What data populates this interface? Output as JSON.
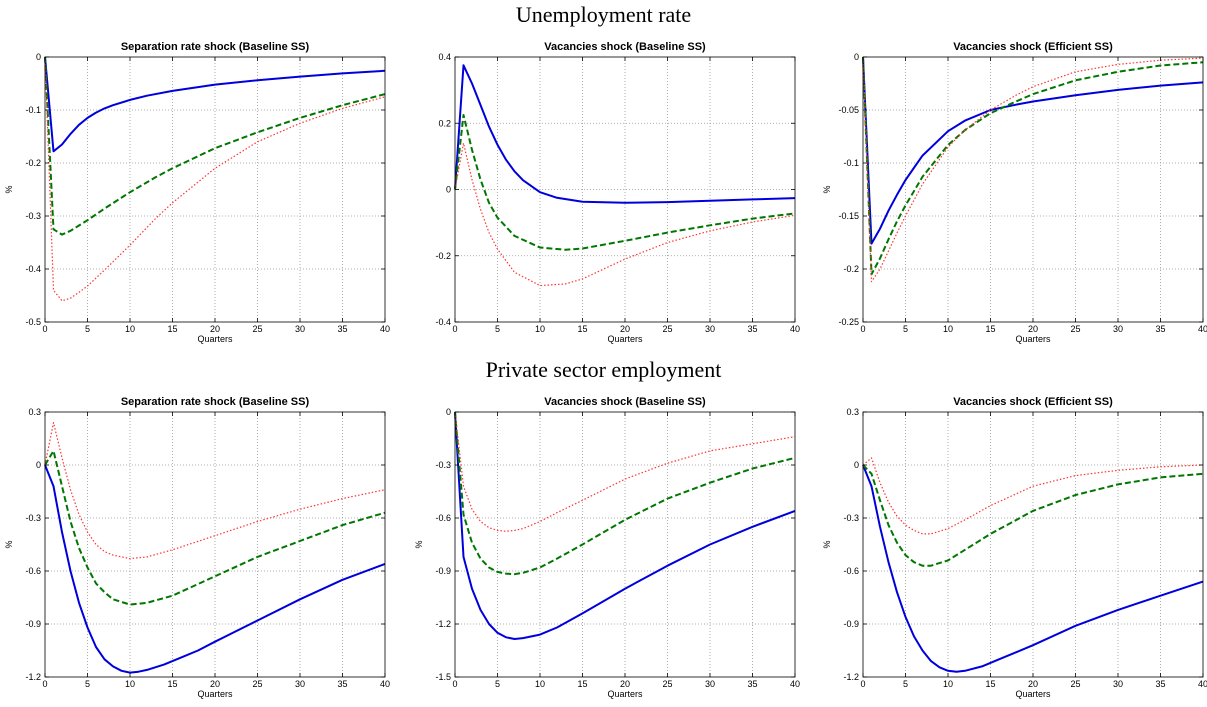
{
  "rows": [
    {
      "title": "Unemployment rate"
    },
    {
      "title": "Private sector employment"
    }
  ],
  "colors": {
    "solid": "#0000dd",
    "dashed": "#007700",
    "dotted": "#ff3333",
    "axis": "#000000",
    "grid": "#999999"
  },
  "chart_data": [
    {
      "type": "line",
      "title": "Separation rate shock (Baseline SS)",
      "xlabel": "Quarters",
      "ylabel": "%",
      "xlim": [
        0,
        40
      ],
      "ylim": [
        -0.5,
        0
      ],
      "xticks": [
        0,
        5,
        10,
        15,
        20,
        25,
        30,
        35,
        40
      ],
      "yticks": [
        -0.5,
        -0.4,
        -0.3,
        -0.2,
        -0.1,
        0
      ],
      "ytick_labels": [
        "-0.5",
        "-0.4",
        "-0.3",
        "-0.2",
        "-0.1",
        "0"
      ],
      "grid": true,
      "series": [
        {
          "style": "solid",
          "x": [
            0,
            1,
            2,
            3,
            4,
            5,
            6,
            7,
            8,
            10,
            12,
            15,
            20,
            25,
            30,
            35,
            40
          ],
          "y": [
            0,
            -0.178,
            -0.165,
            -0.145,
            -0.128,
            -0.115,
            -0.105,
            -0.097,
            -0.091,
            -0.081,
            -0.073,
            -0.064,
            -0.052,
            -0.044,
            -0.037,
            -0.031,
            -0.026
          ]
        },
        {
          "style": "dashed",
          "x": [
            0,
            1,
            2,
            3,
            4,
            5,
            7,
            10,
            13,
            15,
            20,
            25,
            30,
            35,
            40
          ],
          "y": [
            0,
            -0.325,
            -0.335,
            -0.328,
            -0.318,
            -0.308,
            -0.286,
            -0.255,
            -0.227,
            -0.21,
            -0.172,
            -0.142,
            -0.115,
            -0.091,
            -0.07
          ]
        },
        {
          "style": "dotted",
          "x": [
            0,
            1,
            2,
            3,
            4,
            5,
            7,
            10,
            13,
            15,
            20,
            25,
            30,
            35,
            40
          ],
          "y": [
            0,
            -0.44,
            -0.46,
            -0.455,
            -0.444,
            -0.432,
            -0.402,
            -0.355,
            -0.305,
            -0.275,
            -0.21,
            -0.16,
            -0.125,
            -0.097,
            -0.075
          ]
        }
      ]
    },
    {
      "type": "line",
      "title": "Vacancies shock (Baseline SS)",
      "xlabel": "Quarters",
      "ylabel": "",
      "xlim": [
        0,
        40
      ],
      "ylim": [
        -0.4,
        0.4
      ],
      "xticks": [
        0,
        5,
        10,
        15,
        20,
        25,
        30,
        35,
        40
      ],
      "yticks": [
        -0.4,
        -0.2,
        0,
        0.2,
        0.4
      ],
      "ytick_labels": [
        "-0.4",
        "-0.2",
        "0",
        "0.2",
        "0.4"
      ],
      "grid": true,
      "series": [
        {
          "style": "solid",
          "x": [
            0,
            1,
            2,
            3,
            4,
            5,
            6,
            7,
            8,
            10,
            12,
            15,
            20,
            25,
            30,
            35,
            40
          ],
          "y": [
            0,
            0.375,
            0.32,
            0.255,
            0.19,
            0.135,
            0.09,
            0.055,
            0.028,
            -0.008,
            -0.025,
            -0.037,
            -0.04,
            -0.038,
            -0.034,
            -0.03,
            -0.026
          ]
        },
        {
          "style": "dashed",
          "x": [
            0,
            1,
            2,
            3,
            4,
            5,
            7,
            10,
            13,
            15,
            20,
            25,
            30,
            35,
            40
          ],
          "y": [
            0,
            0.225,
            0.12,
            0.03,
            -0.04,
            -0.085,
            -0.14,
            -0.175,
            -0.182,
            -0.178,
            -0.155,
            -0.13,
            -0.108,
            -0.088,
            -0.072
          ]
        },
        {
          "style": "dotted",
          "x": [
            0,
            1,
            2,
            3,
            4,
            5,
            7,
            10,
            13,
            15,
            20,
            25,
            30,
            35,
            40
          ],
          "y": [
            0,
            0.14,
            0.03,
            -0.06,
            -0.13,
            -0.18,
            -0.25,
            -0.29,
            -0.285,
            -0.27,
            -0.21,
            -0.16,
            -0.125,
            -0.098,
            -0.078
          ]
        }
      ]
    },
    {
      "type": "line",
      "title": "Vacancies shock (Efficient SS)",
      "xlabel": "Quarters",
      "ylabel": "%",
      "xlim": [
        0,
        40
      ],
      "ylim": [
        -0.25,
        0
      ],
      "xticks": [
        0,
        5,
        10,
        15,
        20,
        25,
        30,
        35,
        40
      ],
      "yticks": [
        -0.25,
        -0.2,
        -0.15,
        -0.1,
        -0.05,
        0
      ],
      "ytick_labels": [
        "-0.25",
        "-0.2",
        "-0.15",
        "-0.1",
        "-0.05",
        "0"
      ],
      "grid": true,
      "series": [
        {
          "style": "solid",
          "x": [
            0,
            1,
            2,
            3,
            4,
            5,
            7,
            10,
            12,
            15,
            18,
            20,
            25,
            30,
            35,
            40
          ],
          "y": [
            0,
            -0.176,
            -0.162,
            -0.145,
            -0.13,
            -0.116,
            -0.093,
            -0.07,
            -0.06,
            -0.05,
            -0.045,
            -0.042,
            -0.036,
            -0.031,
            -0.027,
            -0.024
          ]
        },
        {
          "style": "dashed",
          "x": [
            0,
            1,
            2,
            3,
            4,
            5,
            7,
            10,
            12,
            15,
            18,
            20,
            25,
            30,
            35,
            40
          ],
          "y": [
            0,
            -0.205,
            -0.19,
            -0.172,
            -0.155,
            -0.14,
            -0.113,
            -0.083,
            -0.069,
            -0.053,
            -0.042,
            -0.035,
            -0.022,
            -0.014,
            -0.008,
            -0.005
          ]
        },
        {
          "style": "dotted",
          "x": [
            0,
            1,
            2,
            3,
            4,
            5,
            7,
            10,
            12,
            15,
            18,
            20,
            25,
            30,
            35,
            40
          ],
          "y": [
            0,
            -0.212,
            -0.2,
            -0.183,
            -0.166,
            -0.15,
            -0.12,
            -0.085,
            -0.069,
            -0.05,
            -0.036,
            -0.028,
            -0.014,
            -0.007,
            -0.003,
            -0.001
          ]
        }
      ]
    },
    {
      "type": "line",
      "title": "Separation rate shock (Baseline SS)",
      "xlabel": "Quarters",
      "ylabel": "%",
      "xlim": [
        0,
        40
      ],
      "ylim": [
        -1.2,
        0.3
      ],
      "xticks": [
        0,
        5,
        10,
        15,
        20,
        25,
        30,
        35,
        40
      ],
      "yticks": [
        -1.2,
        -0.9,
        -0.6,
        -0.3,
        0,
        0.3
      ],
      "ytick_labels": [
        "-1.2",
        "-0.9",
        "-0.6",
        "-0.3",
        "0",
        "0.3"
      ],
      "grid": true,
      "series": [
        {
          "style": "solid",
          "x": [
            0,
            1,
            2,
            3,
            4,
            5,
            6,
            7,
            8,
            9,
            10,
            11,
            12,
            14,
            16,
            18,
            20,
            25,
            30,
            35,
            40
          ],
          "y": [
            0,
            -0.12,
            -0.38,
            -0.6,
            -0.78,
            -0.92,
            -1.03,
            -1.1,
            -1.14,
            -1.165,
            -1.175,
            -1.17,
            -1.16,
            -1.13,
            -1.09,
            -1.05,
            -1.0,
            -0.88,
            -0.76,
            -0.65,
            -0.56
          ]
        },
        {
          "style": "dashed",
          "x": [
            0,
            1,
            2,
            3,
            4,
            5,
            6,
            7,
            8,
            10,
            12,
            15,
            20,
            25,
            30,
            35,
            40
          ],
          "y": [
            0,
            0.08,
            -0.12,
            -0.32,
            -0.47,
            -0.58,
            -0.67,
            -0.72,
            -0.76,
            -0.79,
            -0.78,
            -0.74,
            -0.63,
            -0.52,
            -0.43,
            -0.34,
            -0.27
          ]
        },
        {
          "style": "dotted",
          "x": [
            0,
            1,
            2,
            3,
            4,
            5,
            6,
            7,
            8,
            10,
            12,
            15,
            20,
            25,
            30,
            35,
            40
          ],
          "y": [
            0,
            0.24,
            0.04,
            -0.14,
            -0.28,
            -0.38,
            -0.45,
            -0.49,
            -0.51,
            -0.53,
            -0.52,
            -0.48,
            -0.4,
            -0.32,
            -0.25,
            -0.19,
            -0.14
          ]
        }
      ]
    },
    {
      "type": "line",
      "title": "Vacancies shock (Baseline SS)",
      "xlabel": "Quarters",
      "ylabel": "%",
      "xlim": [
        0,
        40
      ],
      "ylim": [
        -1.5,
        0
      ],
      "xticks": [
        0,
        5,
        10,
        15,
        20,
        25,
        30,
        35,
        40
      ],
      "yticks": [
        -1.5,
        -1.2,
        -0.9,
        -0.6,
        -0.3,
        0
      ],
      "ytick_labels": [
        "-1.5",
        "-1.2",
        "-0.9",
        "-0.6",
        "-0.3",
        "0"
      ],
      "grid": true,
      "series": [
        {
          "style": "solid",
          "x": [
            0,
            1,
            2,
            3,
            4,
            5,
            6,
            7,
            8,
            10,
            12,
            15,
            20,
            25,
            30,
            35,
            40
          ],
          "y": [
            0,
            -0.82,
            -1.0,
            -1.12,
            -1.2,
            -1.25,
            -1.275,
            -1.285,
            -1.28,
            -1.26,
            -1.22,
            -1.14,
            -1.0,
            -0.87,
            -0.75,
            -0.65,
            -0.56
          ]
        },
        {
          "style": "dashed",
          "x": [
            0,
            1,
            2,
            3,
            4,
            5,
            6,
            7,
            8,
            10,
            12,
            15,
            20,
            25,
            30,
            35,
            40
          ],
          "y": [
            0,
            -0.58,
            -0.74,
            -0.83,
            -0.88,
            -0.905,
            -0.915,
            -0.918,
            -0.91,
            -0.88,
            -0.83,
            -0.75,
            -0.61,
            -0.49,
            -0.4,
            -0.32,
            -0.26
          ]
        },
        {
          "style": "dotted",
          "x": [
            0,
            1,
            2,
            3,
            4,
            5,
            6,
            7,
            8,
            10,
            12,
            15,
            20,
            25,
            30,
            35,
            40
          ],
          "y": [
            0,
            -0.42,
            -0.55,
            -0.62,
            -0.655,
            -0.67,
            -0.675,
            -0.67,
            -0.66,
            -0.62,
            -0.57,
            -0.5,
            -0.38,
            -0.29,
            -0.22,
            -0.18,
            -0.14
          ]
        }
      ]
    },
    {
      "type": "line",
      "title": "Vacancies shock (Efficient SS)",
      "xlabel": "Quarters",
      "ylabel": "%",
      "xlim": [
        0,
        40
      ],
      "ylim": [
        -1.2,
        0.3
      ],
      "xticks": [
        0,
        5,
        10,
        15,
        20,
        25,
        30,
        35,
        40
      ],
      "yticks": [
        -1.2,
        -0.9,
        -0.6,
        -0.3,
        0,
        0.3
      ],
      "ytick_labels": [
        "-1.2",
        "-0.9",
        "-0.6",
        "-0.3",
        "0",
        "0.3"
      ],
      "grid": true,
      "series": [
        {
          "style": "solid",
          "x": [
            0,
            1,
            2,
            3,
            4,
            5,
            6,
            7,
            8,
            9,
            10,
            11,
            12,
            14,
            16,
            18,
            20,
            25,
            30,
            35,
            40
          ],
          "y": [
            0,
            -0.12,
            -0.35,
            -0.55,
            -0.72,
            -0.86,
            -0.97,
            -1.05,
            -1.11,
            -1.145,
            -1.165,
            -1.17,
            -1.165,
            -1.14,
            -1.1,
            -1.06,
            -1.02,
            -0.91,
            -0.82,
            -0.74,
            -0.66
          ]
        },
        {
          "style": "dashed",
          "x": [
            0,
            1,
            2,
            3,
            4,
            5,
            6,
            7,
            8,
            10,
            12,
            15,
            20,
            25,
            30,
            35,
            40
          ],
          "y": [
            0,
            -0.05,
            -0.2,
            -0.34,
            -0.44,
            -0.51,
            -0.55,
            -0.57,
            -0.57,
            -0.54,
            -0.48,
            -0.39,
            -0.26,
            -0.17,
            -0.11,
            -0.07,
            -0.05
          ]
        },
        {
          "style": "dotted",
          "x": [
            0,
            1,
            2,
            3,
            4,
            5,
            6,
            7,
            8,
            10,
            12,
            15,
            20,
            25,
            30,
            35,
            40
          ],
          "y": [
            0,
            0.04,
            -0.1,
            -0.21,
            -0.29,
            -0.34,
            -0.37,
            -0.39,
            -0.39,
            -0.36,
            -0.31,
            -0.23,
            -0.12,
            -0.06,
            -0.03,
            -0.01,
            0.0
          ]
        }
      ]
    }
  ]
}
